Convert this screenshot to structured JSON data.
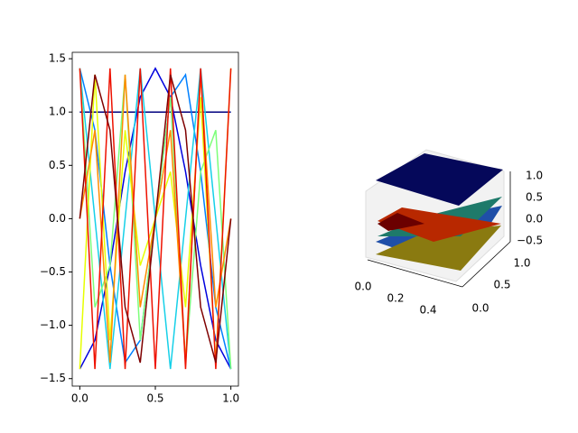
{
  "chart_data": [
    {
      "type": "line",
      "x": [
        0,
        0.1,
        0.2,
        0.3,
        0.4,
        0.5,
        0.6,
        0.7,
        0.8,
        0.9,
        1
      ],
      "xlim": [
        -0.05,
        1.05
      ],
      "ylim": [
        -1.57,
        1.56
      ],
      "xticks": [
        {
          "value": 0,
          "label": "0.0"
        },
        {
          "value": 0.5,
          "label": "0.5"
        },
        {
          "value": 1,
          "label": "1.0"
        }
      ],
      "yticks": [
        {
          "value": -1.5,
          "label": "−1.5"
        },
        {
          "value": -1,
          "label": "−1.0"
        },
        {
          "value": -0.5,
          "label": "−0.5"
        },
        {
          "value": 0,
          "label": "0.0"
        },
        {
          "value": 0.5,
          "label": "0.5"
        },
        {
          "value": 1,
          "label": "1.0"
        },
        {
          "value": 1.5,
          "label": "1.5"
        }
      ],
      "series": [
        {
          "color": "#00007f",
          "values": [
            1,
            1,
            1,
            1,
            1,
            1,
            1,
            1,
            1,
            1,
            1
          ]
        },
        {
          "color": "#0000dd",
          "values": [
            -1.41,
            -1.14,
            -0.44,
            0.44,
            1.14,
            1.41,
            1.14,
            0.44,
            -0.44,
            -1.14,
            -1.41
          ]
        },
        {
          "color": "#0080ff",
          "values": [
            1.41,
            0.83,
            -0.44,
            -1.35,
            -1.14,
            0,
            1.14,
            1.35,
            0.44,
            -0.83,
            -1.41
          ]
        },
        {
          "color": "#16d0e8",
          "values": [
            1.41,
            0,
            -1.41,
            0,
            1.41,
            0,
            -1.41,
            0,
            1.41,
            0,
            -1.41
          ]
        },
        {
          "color": "#7dff7a",
          "values": [
            1.41,
            -0.83,
            -0.44,
            1.35,
            -1.14,
            0,
            1.14,
            -1.35,
            0.44,
            0.83,
            -1.41
          ]
        },
        {
          "color": "#e6ff00",
          "values": [
            -1.41,
            1.35,
            -1.14,
            0.83,
            -0.44,
            0,
            0.44,
            -0.83,
            1.14,
            -1.35,
            1.41
          ]
        },
        {
          "color": "#ff8c00",
          "values": [
            0,
            0.83,
            -1.35,
            1.35,
            -0.83,
            0,
            0.83,
            -1.35,
            1.35,
            -0.83,
            0
          ]
        },
        {
          "color": "#ee1100",
          "values": [
            1.41,
            -1.41,
            1.41,
            -1.41,
            1.41,
            -1.41,
            1.41,
            -1.41,
            1.41,
            -1.41,
            1.41
          ]
        },
        {
          "color": "#7f0000",
          "values": [
            0,
            1.35,
            0.83,
            -0.83,
            -1.35,
            0,
            1.35,
            0.83,
            -0.83,
            -1.35,
            0
          ]
        }
      ]
    },
    {
      "type": "surface3d",
      "xticks": [
        {
          "value": 0,
          "label": "0.0"
        },
        {
          "value": 0.2,
          "label": "0.2"
        },
        {
          "value": 0.4,
          "label": "0.4"
        }
      ],
      "yticks": [
        {
          "value": 0,
          "label": "0.0"
        },
        {
          "value": 0.5,
          "label": "0.5"
        },
        {
          "value": 1,
          "label": "1.0"
        }
      ],
      "zticks": [
        {
          "value": -0.5,
          "label": "−0.5"
        },
        {
          "value": 0,
          "label": "0.0"
        },
        {
          "value": 0.5,
          "label": "0.5"
        },
        {
          "value": 1,
          "label": "1.0"
        }
      ]
    }
  ]
}
